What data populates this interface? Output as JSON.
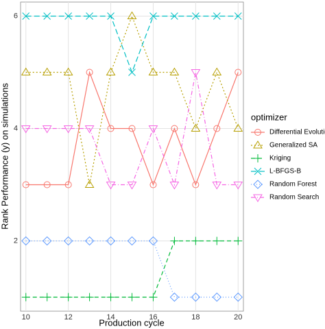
{
  "chart_data": {
    "type": "line",
    "x_label": "Production cycle",
    "y_label": "Rank Performance (y) on simulations",
    "legend_title": "optimizer",
    "legend_position": "right",
    "grid": true,
    "x": [
      10,
      11,
      12,
      13,
      14,
      15,
      16,
      17,
      18,
      19,
      20
    ],
    "xlim": [
      9.75,
      20.25
    ],
    "xticks": [
      10,
      12,
      14,
      16,
      18,
      20
    ],
    "ylim": [
      0.75,
      6.25
    ],
    "yticks": [
      2,
      4,
      6
    ],
    "series": [
      {
        "name": "Differential Evolution",
        "color": "#f8766d",
        "dash": "",
        "marker": "circle",
        "values": [
          3,
          3,
          3,
          5,
          4,
          4,
          3,
          4,
          3,
          4,
          5
        ]
      },
      {
        "name": "Generalized SA",
        "color": "#b79f00",
        "dash": "2,3",
        "marker": "triangle-up",
        "values": [
          5,
          5,
          5,
          3,
          5,
          6,
          5,
          5,
          4,
          5,
          4
        ]
      },
      {
        "name": "Kriging",
        "color": "#00ba38",
        "dash": "6,4",
        "marker": "plus",
        "values": [
          1,
          1,
          1,
          1,
          1,
          1,
          1,
          2,
          2,
          2,
          2
        ]
      },
      {
        "name": "L-BFGS-B",
        "color": "#00bfc4",
        "dash": "8,4",
        "marker": "cross",
        "values": [
          6,
          6,
          6,
          6,
          6,
          5,
          6,
          6,
          6,
          6,
          6
        ]
      },
      {
        "name": "Random Forest",
        "color": "#619cff",
        "dash": "1,3",
        "marker": "diamond",
        "values": [
          2,
          2,
          2,
          2,
          2,
          2,
          2,
          1,
          1,
          1,
          1
        ]
      },
      {
        "name": "Random Search",
        "color": "#f564e3",
        "dash": "6,3,1,3",
        "marker": "triangle-down",
        "values": [
          4,
          4,
          4,
          4,
          3,
          3,
          4,
          3,
          5,
          3,
          3
        ]
      }
    ]
  }
}
